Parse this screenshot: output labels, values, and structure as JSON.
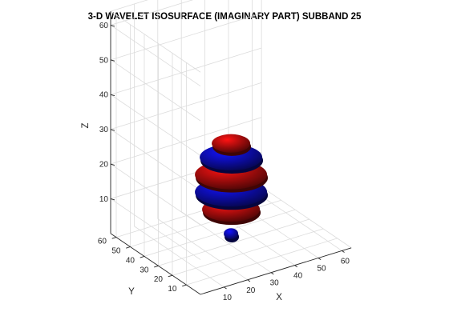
{
  "chart_data": {
    "type": "isosurface-3d",
    "title": "3-D WAVELET ISOSURFACE (IMAGINARY PART) SUBBAND 25",
    "xlabel": "X",
    "ylabel": "Y",
    "zlabel": "Z",
    "xlim": [
      0,
      64
    ],
    "ylim": [
      0,
      64
    ],
    "zlim": [
      0,
      64
    ],
    "xticks": [
      10,
      20,
      30,
      40,
      50,
      60
    ],
    "yticks": [
      10,
      20,
      30,
      40,
      50,
      60
    ],
    "zticks": [
      10,
      20,
      30,
      40,
      50,
      60
    ],
    "grid": true,
    "colors": {
      "positive": "#8b0a0a",
      "negative": "#0a0a8c"
    },
    "surfaces": [
      {
        "sign": "negative",
        "z": 2,
        "radius": 3
      },
      {
        "sign": "positive",
        "z": 9,
        "radius": 12
      },
      {
        "sign": "negative",
        "z": 14,
        "radius": 15
      },
      {
        "sign": "positive",
        "z": 19,
        "radius": 15
      },
      {
        "sign": "negative",
        "z": 24,
        "radius": 13
      },
      {
        "sign": "positive",
        "z": 28,
        "radius": 8
      }
    ]
  }
}
